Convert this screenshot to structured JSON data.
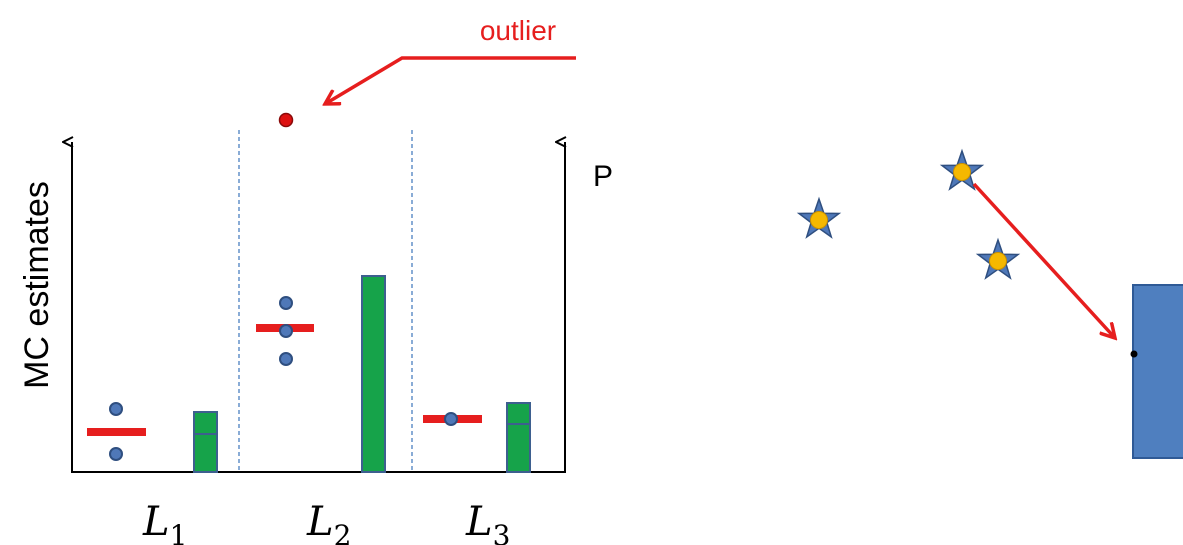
{
  "annotations": {
    "outlier_label": "outlier",
    "y_axis_label": "MC estimates",
    "right_axis_label": "P"
  },
  "levels": [
    {
      "name": "L",
      "sub": "1"
    },
    {
      "name": "L",
      "sub": "2"
    },
    {
      "name": "L",
      "sub": "3"
    }
  ],
  "colors": {
    "estimate_dot": "#4f78b8",
    "dot_outline": "#2f4f80",
    "mean_bar": "#e61e1e",
    "outlier_dot": "#dd1111",
    "prob_bar_fill": "#16a34a",
    "prob_bar_outline": "#3d5f8f",
    "arrow": "#e61e1e",
    "axis": "#000000",
    "separator": "#4a80c0",
    "star_fill": "#4f78b8",
    "star_center": "#f5b800",
    "box_fill": "#4f7fbf",
    "box_outline": "#2f5a96"
  },
  "icons": {
    "sample_marker": "star-with-yellow-center-icon"
  }
}
